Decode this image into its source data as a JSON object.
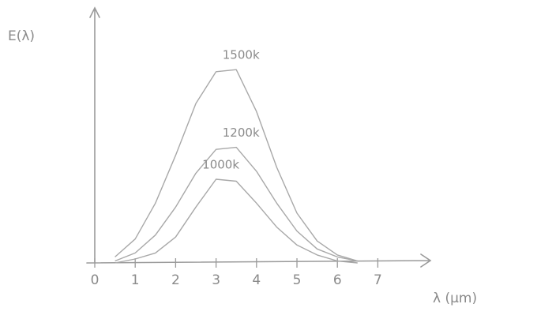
{
  "chart_data": {
    "type": "line",
    "ylabel": "E(λ)",
    "xlabel": "λ (μm)",
    "x": [
      0.5,
      1,
      1.5,
      2,
      2.5,
      3,
      3.5,
      4,
      4.5,
      5,
      5.5,
      6,
      6.5
    ],
    "series": [
      {
        "name": "1500k",
        "color": "#a8a8a8",
        "values": [
          0.3,
          1.2,
          3,
          5.4,
          8,
          9.6,
          9.7,
          7.6,
          4.8,
          2.5,
          1.1,
          0.4,
          0.1
        ]
      },
      {
        "name": "1200k",
        "color": "#a8a8a8",
        "values": [
          0.1,
          0.5,
          1.4,
          2.8,
          4.5,
          5.7,
          5.8,
          4.6,
          3.0,
          1.6,
          0.7,
          0.3,
          0.1
        ]
      },
      {
        "name": "1000k",
        "color": "#a8a8a8",
        "values": [
          0,
          0.2,
          0.5,
          1.3,
          2.8,
          4.2,
          4.1,
          3.0,
          1.8,
          0.9,
          0.4,
          0.1,
          0
        ]
      }
    ],
    "xlim": [
      0,
      8.3
    ],
    "ylim": [
      0,
      12.8
    ],
    "xticks": [
      0,
      1,
      2,
      3,
      4,
      5,
      6,
      7
    ]
  }
}
